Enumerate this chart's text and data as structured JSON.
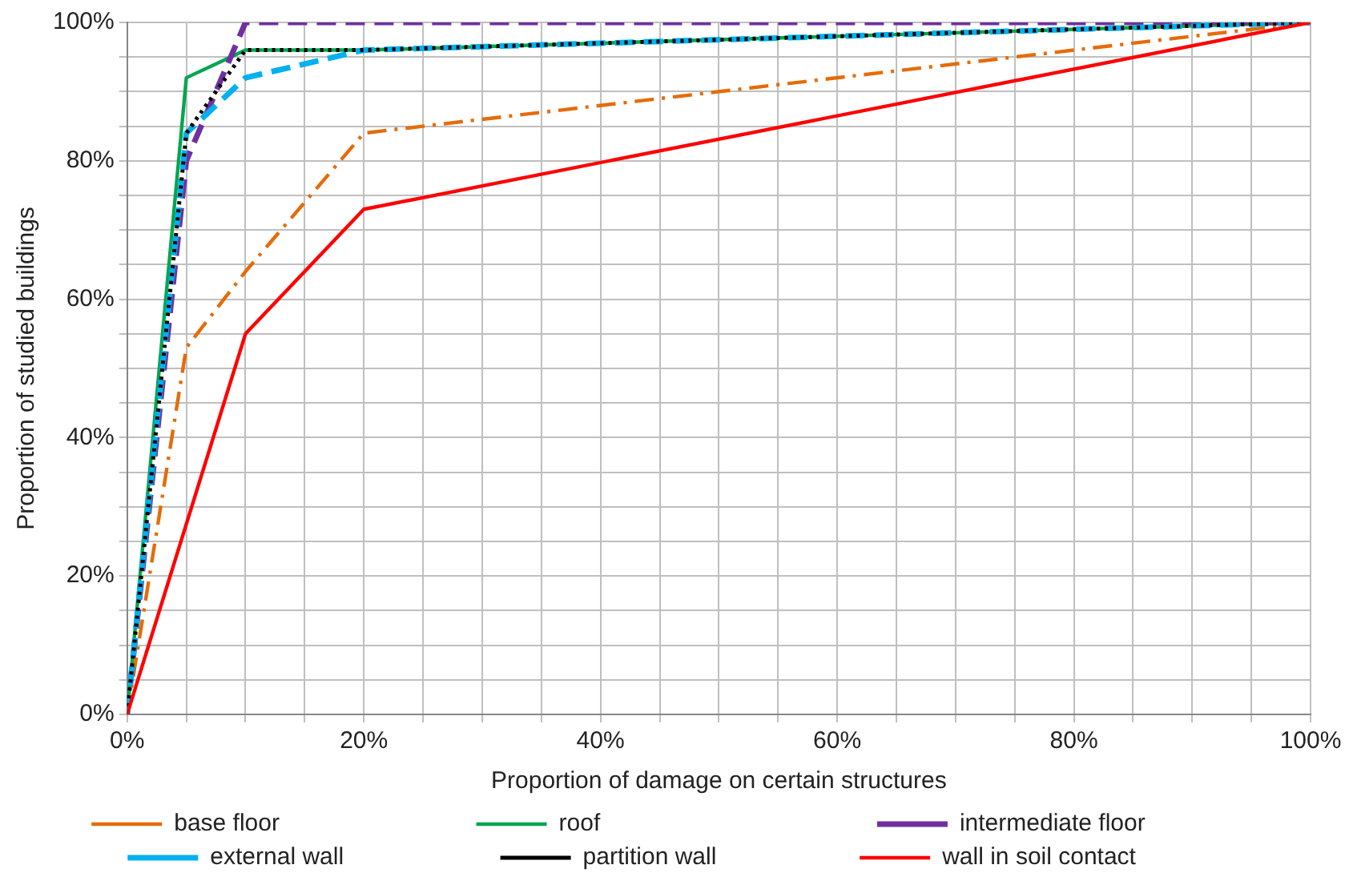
{
  "chart_data": {
    "type": "line",
    "xlabel": "Proportion of damage on certain structures",
    "ylabel": "Proportion of studied buildings",
    "xlim": [
      0,
      100
    ],
    "ylim": [
      0,
      100
    ],
    "xticks": [
      {
        "value": 0,
        "label": "0%"
      },
      {
        "value": 5,
        "label": null
      },
      {
        "value": 10,
        "label": null
      },
      {
        "value": 15,
        "label": null
      },
      {
        "value": 20,
        "label": "20%"
      },
      {
        "value": 25,
        "label": null
      },
      {
        "value": 30,
        "label": null
      },
      {
        "value": 35,
        "label": null
      },
      {
        "value": 40,
        "label": "40%"
      },
      {
        "value": 45,
        "label": null
      },
      {
        "value": 50,
        "label": null
      },
      {
        "value": 55,
        "label": null
      },
      {
        "value": 60,
        "label": "60%"
      },
      {
        "value": 65,
        "label": null
      },
      {
        "value": 70,
        "label": null
      },
      {
        "value": 75,
        "label": null
      },
      {
        "value": 80,
        "label": "80%"
      },
      {
        "value": 85,
        "label": null
      },
      {
        "value": 90,
        "label": null
      },
      {
        "value": 95,
        "label": null
      },
      {
        "value": 100,
        "label": "100%"
      }
    ],
    "yticks": [
      {
        "value": 0,
        "label": "0%"
      },
      {
        "value": 5,
        "label": null
      },
      {
        "value": 10,
        "label": null
      },
      {
        "value": 15,
        "label": null
      },
      {
        "value": 20,
        "label": "20%"
      },
      {
        "value": 25,
        "label": null
      },
      {
        "value": 30,
        "label": null
      },
      {
        "value": 35,
        "label": null
      },
      {
        "value": 40,
        "label": "40%"
      },
      {
        "value": 45,
        "label": null
      },
      {
        "value": 50,
        "label": null
      },
      {
        "value": 55,
        "label": null
      },
      {
        "value": 60,
        "label": "60%"
      },
      {
        "value": 65,
        "label": null
      },
      {
        "value": 70,
        "label": null
      },
      {
        "value": 75,
        "label": null
      },
      {
        "value": 80,
        "label": "80%"
      },
      {
        "value": 85,
        "label": null
      },
      {
        "value": 90,
        "label": null
      },
      {
        "value": 95,
        "label": null
      },
      {
        "value": 100,
        "label": "100%"
      }
    ],
    "grid": true,
    "legend": "bottom",
    "marker": "none",
    "series": [
      {
        "name": "base floor",
        "color": "#e46c0a",
        "line_style": "dashdot",
        "x": [
          0,
          5,
          10,
          20,
          100
        ],
        "values": [
          0,
          53,
          64,
          84,
          100
        ]
      },
      {
        "name": "roof",
        "color": "#00a651",
        "line_style": "solid",
        "x": [
          0,
          5,
          10,
          20,
          100
        ],
        "values": [
          0,
          92,
          96,
          96,
          100
        ]
      },
      {
        "name": "intermediate floor",
        "color": "#7030a0",
        "line_style": "dashed",
        "x": [
          0,
          5,
          10,
          20,
          100
        ],
        "values": [
          0,
          80,
          100,
          100,
          100
        ]
      },
      {
        "name": "external wall",
        "color": "#00b0f0",
        "line_style": "dashed",
        "x": [
          0,
          5,
          10,
          20,
          100
        ],
        "values": [
          0,
          84,
          92,
          96,
          100
        ]
      },
      {
        "name": "partition wall",
        "color": "#000000",
        "line_style": "dotted",
        "x": [
          0,
          5,
          10,
          20,
          100
        ],
        "values": [
          0,
          84,
          96,
          96,
          100
        ]
      },
      {
        "name": "wall in soil contact",
        "color": "#ff0000",
        "line_style": "solid",
        "x": [
          0,
          10,
          20,
          100
        ],
        "values": [
          0,
          55,
          73,
          100
        ]
      }
    ]
  }
}
